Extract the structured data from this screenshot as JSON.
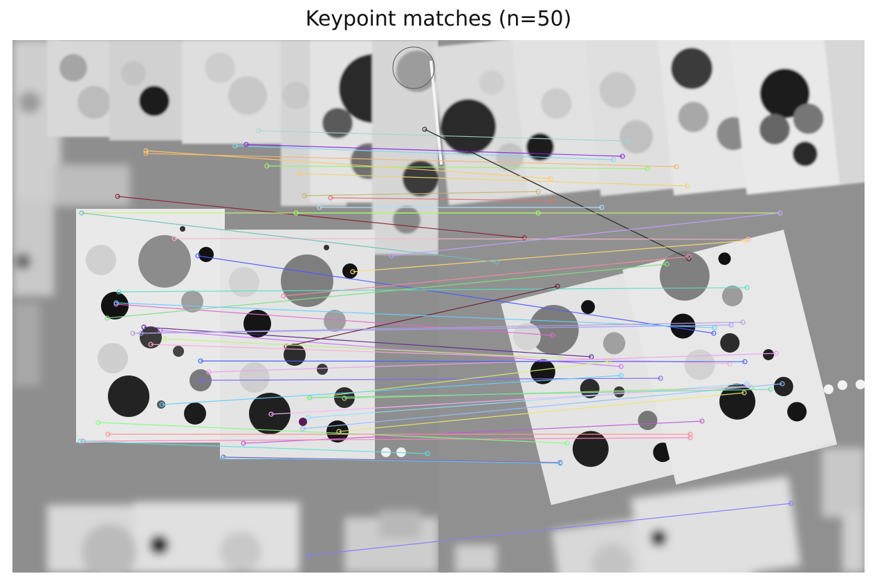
{
  "figure": {
    "title": "Keypoint matches (n=50)"
  },
  "matches": {
    "count": 50,
    "colors": [
      "#9fd8d0",
      "#7ed6f0",
      "#8a2be2",
      "#f4b774",
      "#9df56a",
      "#f2d36b",
      "#c6b46b",
      "#8b2030",
      "#2b2b2b",
      "#c7f57a",
      "#f7b6c8",
      "#4a5cff",
      "#ffd86e",
      "#f08aa0",
      "#58e0c4",
      "#e06ad0",
      "#7fe07f",
      "#5a2a8a",
      "#a0a0ff",
      "#d070ff",
      "#6a1f3a",
      "#ffa9d6",
      "#66ccff",
      "#b39ddb",
      "#c0f080",
      "#7b68ee",
      "#f0a0f0",
      "#8be0ff",
      "#a6e070",
      "#ffb0ff",
      "#4060ff",
      "#d8f070",
      "#90c0ff",
      "#c05bd8",
      "#70e0b0",
      "#e8e870",
      "#9b59b6",
      "#ff80c0",
      "#80ff80",
      "#5fd0ff",
      "#ffcc66",
      "#b0e0ff",
      "#e07070",
      "#c0a0ff",
      "#70c0c0",
      "#a0ff60",
      "#ff9090",
      "#8080ff",
      "#60e0e0",
      "#5cc8ef"
    ]
  }
}
